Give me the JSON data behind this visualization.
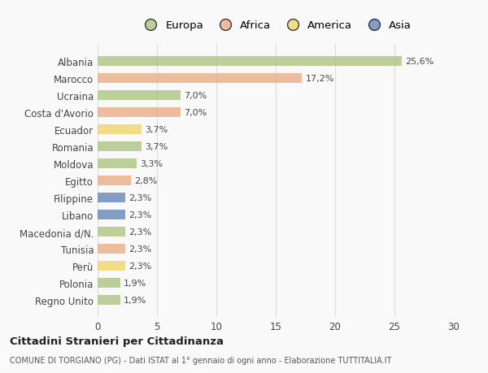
{
  "countries": [
    "Albania",
    "Marocco",
    "Ucraina",
    "Costa d'Avorio",
    "Ecuador",
    "Romania",
    "Moldova",
    "Egitto",
    "Filippine",
    "Libano",
    "Macedonia d/N.",
    "Tunisia",
    "Perù",
    "Polonia",
    "Regno Unito"
  ],
  "values": [
    25.6,
    17.2,
    7.0,
    7.0,
    3.7,
    3.7,
    3.3,
    2.8,
    2.3,
    2.3,
    2.3,
    2.3,
    2.3,
    1.9,
    1.9
  ],
  "labels": [
    "25,6%",
    "17,2%",
    "7,0%",
    "7,0%",
    "3,7%",
    "3,7%",
    "3,3%",
    "2,8%",
    "2,3%",
    "2,3%",
    "2,3%",
    "2,3%",
    "2,3%",
    "1,9%",
    "1,9%"
  ],
  "continents": [
    "Europa",
    "Africa",
    "Europa",
    "Africa",
    "America",
    "Europa",
    "Europa",
    "Africa",
    "Asia",
    "Asia",
    "Europa",
    "Africa",
    "America",
    "Europa",
    "Europa"
  ],
  "continent_colors": {
    "Europa": "#a8c07a",
    "Africa": "#e8a97e",
    "America": "#f0d060",
    "Asia": "#5b7fb5"
  },
  "legend_order": [
    "Europa",
    "Africa",
    "America",
    "Asia"
  ],
  "xlim": [
    0,
    30
  ],
  "xticks": [
    0,
    5,
    10,
    15,
    20,
    25,
    30
  ],
  "title": "Cittadini Stranieri per Cittadinanza",
  "subtitle": "COMUNE DI TORGIANO (PG) - Dati ISTAT al 1° gennaio di ogni anno - Elaborazione TUTTITALIA.IT",
  "bg_color": "#f9f9f9",
  "bar_alpha": 0.75,
  "grid_color": "#dddddd"
}
